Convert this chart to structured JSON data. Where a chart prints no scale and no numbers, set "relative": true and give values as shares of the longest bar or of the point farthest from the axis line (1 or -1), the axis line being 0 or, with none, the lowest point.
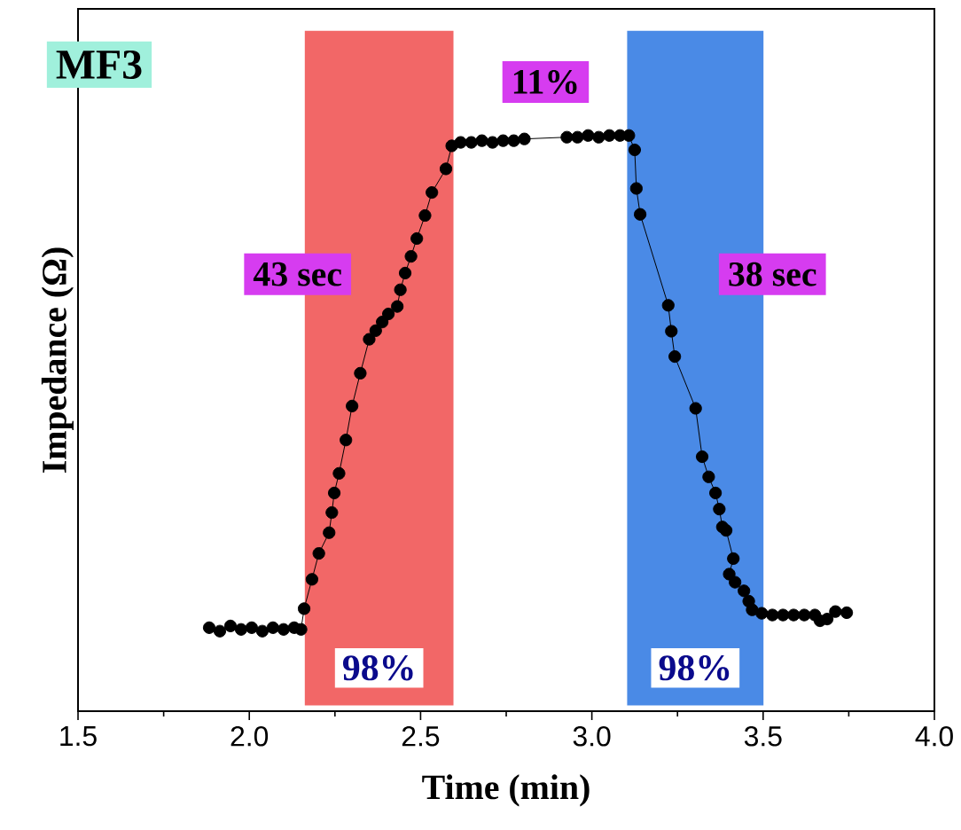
{
  "chart_data": {
    "type": "line",
    "xlabel": "Time (min)",
    "ylabel": "Impedance (Ω)",
    "relative": true,
    "xlim": [
      1.5,
      4.0
    ],
    "xticks": [
      1.5,
      {
        "value": 2.0,
        "label": "2.0"
      },
      2.5,
      {
        "value": 3.0,
        "label": "3.0"
      },
      3.5,
      {
        "value": 4.0,
        "label": "4.0"
      }
    ],
    "x": [
      1.883,
      1.914,
      1.945,
      1.976,
      2.007,
      2.038,
      2.069,
      2.1,
      2.131,
      2.151,
      2.16,
      2.183,
      2.203,
      2.233,
      2.241,
      2.248,
      2.262,
      2.282,
      2.3,
      2.324,
      2.35,
      2.369,
      2.388,
      2.406,
      2.432,
      2.441,
      2.455,
      2.472,
      2.489,
      2.513,
      2.533,
      2.574,
      2.591,
      2.617,
      2.648,
      2.679,
      2.71,
      2.741,
      2.772,
      2.803,
      2.927,
      2.958,
      2.989,
      3.02,
      3.051,
      3.082,
      3.108,
      3.125,
      3.13,
      3.141,
      3.223,
      3.232,
      3.242,
      3.303,
      3.322,
      3.341,
      3.361,
      3.372,
      3.381,
      3.392,
      3.413,
      3.401,
      3.418,
      3.444,
      3.458,
      3.468,
      3.496,
      3.527,
      3.558,
      3.589,
      3.62,
      3.651,
      3.666,
      3.687,
      3.711,
      3.744
    ],
    "values": [
      0.145,
      0.139,
      0.148,
      0.142,
      0.145,
      0.139,
      0.145,
      0.142,
      0.145,
      0.142,
      0.178,
      0.229,
      0.274,
      0.31,
      0.345,
      0.379,
      0.413,
      0.471,
      0.53,
      0.587,
      0.646,
      0.661,
      0.676,
      0.69,
      0.703,
      0.732,
      0.761,
      0.79,
      0.821,
      0.861,
      0.901,
      0.942,
      0.982,
      0.988,
      0.988,
      0.991,
      0.988,
      0.991,
      0.991,
      0.994,
      0.997,
      0.997,
      1.0,
      0.997,
      1.0,
      1.0,
      1.0,
      0.975,
      0.908,
      0.863,
      0.705,
      0.66,
      0.616,
      0.526,
      0.442,
      0.407,
      0.379,
      0.351,
      0.32,
      0.314,
      0.265,
      0.238,
      0.224,
      0.209,
      0.191,
      0.176,
      0.17,
      0.167,
      0.167,
      0.167,
      0.167,
      0.167,
      0.157,
      0.16,
      0.173,
      0.171
    ],
    "color": "#000000",
    "marker": "circle",
    "bands": [
      {
        "axis": "x",
        "from": 2.162,
        "to": 2.596,
        "color": "#f26767",
        "label": "98%"
      },
      {
        "axis": "x",
        "from": 3.103,
        "to": 3.501,
        "color": "#4a8ae6",
        "label": "98%"
      }
    ],
    "annotations": [
      "MF3",
      "43 sec",
      "11%",
      "38 sec"
    ]
  }
}
